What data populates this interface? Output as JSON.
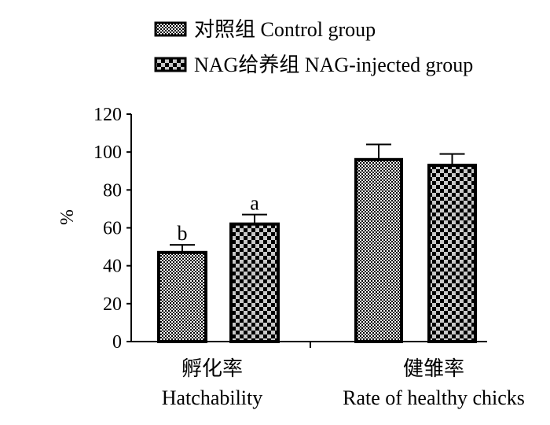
{
  "chart_data": {
    "type": "bar",
    "categories": [
      "孵化率 Hatchability",
      "健雏率 Rate of healthy chicks"
    ],
    "category_labels": [
      {
        "zh": "孵化率",
        "en": "Hatchability"
      },
      {
        "zh": "健雏率",
        "en": "Rate of healthy chicks"
      }
    ],
    "ylabel": "%",
    "ylim": [
      0,
      120
    ],
    "yticks": [
      0,
      20,
      40,
      60,
      80,
      100,
      120
    ],
    "grid": false,
    "legend_position": "top",
    "series": [
      {
        "name": "对照组  Control group",
        "pattern": "fine-checker",
        "values": [
          47,
          96
        ],
        "errors": [
          4,
          8
        ],
        "annotations": [
          "b",
          ""
        ]
      },
      {
        "name": "NAG给养组  NAG-injected group",
        "pattern": "coarse-checker",
        "values": [
          62,
          93
        ],
        "errors": [
          5,
          6
        ],
        "annotations": [
          "a",
          ""
        ]
      }
    ]
  },
  "colors": {
    "ink": "#000000",
    "fill_light": "#ffffff",
    "fill_dark": "#000000"
  }
}
